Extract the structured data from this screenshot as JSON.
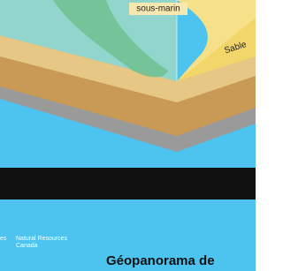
{
  "labels": {
    "channel": "sous-marin",
    "sand": "Sable"
  },
  "footer": {
    "agency_prefix": "es",
    "agency_en_1": "Natural Resources",
    "agency_en_2": "Canada",
    "title": "Géopanorama de"
  }
}
